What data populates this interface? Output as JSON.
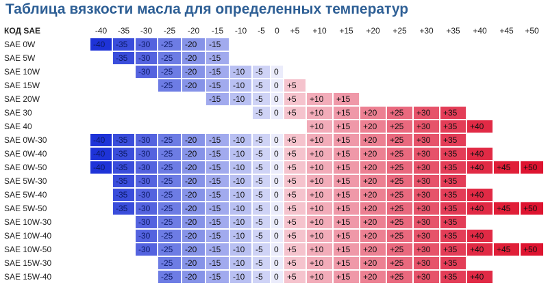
{
  "title": "Таблица вязкости масла для определенных температур",
  "code_header": "КОД SAE",
  "temps": [
    "-40",
    "-35",
    "-30",
    "-25",
    "-20",
    "-15",
    "-10",
    "-5",
    "0",
    "+5",
    "+10",
    "+15",
    "+20",
    "+25",
    "+30",
    "+35",
    "+40",
    "+45",
    "+50"
  ],
  "colors": {
    "-40": "#1e33d8",
    "-35": "#3a4ddb",
    "-30": "#5463df",
    "-25": "#6d7ce4",
    "-20": "#8693e8",
    "-15": "#a1aaee",
    "-10": "#b9c0f2",
    "-5": "#cfd3f6",
    "0": "#ebecfb",
    "+5": "#f5c3cd",
    "+10": "#f2acb9",
    "+15": "#ef98a8",
    "+20": "#ec8092",
    "+25": "#e9697e",
    "+30": "#e6536a",
    "+35": "#e33d57",
    "+40": "#e12a45",
    "+45": "#e01f38",
    "+50": "#de1430"
  },
  "rows": [
    {
      "label": "SAE 0W",
      "from": "-40",
      "to": "-15"
    },
    {
      "label": "SAE 5W",
      "from": "-35",
      "to": "-15"
    },
    {
      "label": "SAE 10W",
      "from": "-30",
      "to": "0"
    },
    {
      "label": "SAE 15W",
      "from": "-25",
      "to": "+5"
    },
    {
      "label": "SAE 20W",
      "from": "-15",
      "to": "+15"
    },
    {
      "label": "SAE 30",
      "from": "-5",
      "to": "+35"
    },
    {
      "label": "SAE 40",
      "from": "+10",
      "to": "+40"
    },
    {
      "label": "SAE 0W-30",
      "from": "-40",
      "to": "+35"
    },
    {
      "label": "SAE 0W-40",
      "from": "-40",
      "to": "+40"
    },
    {
      "label": "SAE 0W-50",
      "from": "-40",
      "to": "+50"
    },
    {
      "label": "SAE 5W-30",
      "from": "-35",
      "to": "+35"
    },
    {
      "label": "SAE 5W-40",
      "from": "-35",
      "to": "+40"
    },
    {
      "label": "SAE 5W-50",
      "from": "-35",
      "to": "+50"
    },
    {
      "label": "SAE 10W-30",
      "from": "-30",
      "to": "+35"
    },
    {
      "label": "SAE 10W-40",
      "from": "-30",
      "to": "+40"
    },
    {
      "label": "SAE 10W-50",
      "from": "-30",
      "to": "+50"
    },
    {
      "label": "SAE 15W-30",
      "from": "-25",
      "to": "+35"
    },
    {
      "label": "SAE 15W-40",
      "from": "-25",
      "to": "+40"
    }
  ]
}
